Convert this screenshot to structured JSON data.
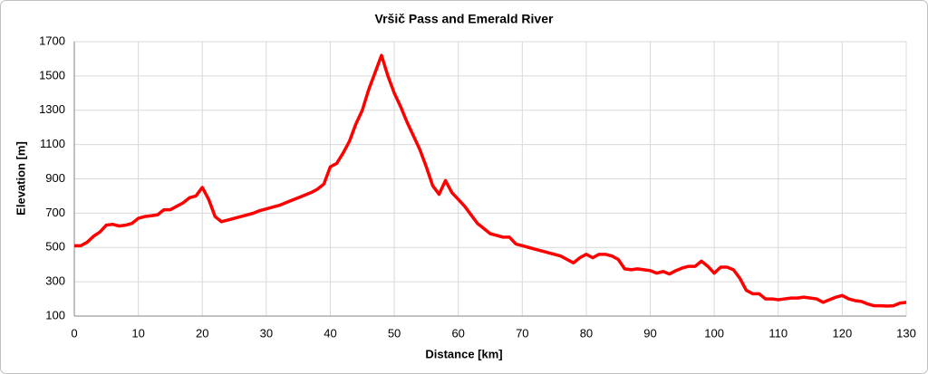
{
  "chart_data": {
    "type": "line",
    "title": "Vršič Pass and Emerald River",
    "x_label": "Distance [km]",
    "y_label": "Elevation [m]",
    "xlim": [
      0,
      130
    ],
    "xticks": [
      0,
      10,
      20,
      30,
      40,
      50,
      60,
      70,
      80,
      90,
      100,
      110,
      120,
      130
    ],
    "ylim": [
      100,
      1700
    ],
    "yticks": [
      100,
      300,
      500,
      700,
      900,
      1100,
      1300,
      1500,
      1700
    ],
    "grid": true,
    "x": [
      0,
      1,
      2,
      3,
      4,
      5,
      6,
      7,
      8,
      9,
      10,
      11,
      12,
      13,
      14,
      15,
      16,
      17,
      18,
      19,
      20,
      21,
      22,
      23,
      24,
      25,
      26,
      27,
      28,
      29,
      30,
      31,
      32,
      33,
      34,
      35,
      36,
      37,
      38,
      39,
      40,
      41,
      42,
      43,
      44,
      45,
      46,
      47,
      48,
      49,
      50,
      51,
      52,
      53,
      54,
      55,
      56,
      57,
      58,
      59,
      60,
      61,
      62,
      63,
      64,
      65,
      66,
      67,
      68,
      69,
      70,
      71,
      72,
      73,
      74,
      75,
      76,
      77,
      78,
      79,
      80,
      81,
      82,
      83,
      84,
      85,
      86,
      87,
      88,
      89,
      90,
      91,
      92,
      93,
      94,
      95,
      96,
      97,
      98,
      99,
      100,
      101,
      102,
      103,
      104,
      105,
      106,
      107,
      108,
      109,
      110,
      111,
      112,
      113,
      114,
      115,
      116,
      117,
      118,
      119,
      120,
      121,
      122,
      123,
      124,
      125,
      126,
      127,
      128,
      129,
      130
    ],
    "series": [
      {
        "name": "Elevation",
        "color": "#ff0000",
        "values": [
          510,
          510,
          530,
          565,
          590,
          630,
          635,
          625,
          630,
          640,
          670,
          680,
          685,
          690,
          720,
          720,
          740,
          760,
          790,
          800,
          850,
          780,
          680,
          650,
          660,
          670,
          680,
          690,
          700,
          715,
          725,
          735,
          745,
          760,
          775,
          790,
          805,
          820,
          840,
          870,
          970,
          990,
          1050,
          1120,
          1220,
          1300,
          1420,
          1520,
          1620,
          1500,
          1400,
          1320,
          1230,
          1150,
          1070,
          970,
          860,
          810,
          890,
          820,
          780,
          740,
          690,
          640,
          610,
          580,
          570,
          560,
          560,
          520,
          510,
          500,
          490,
          480,
          470,
          460,
          450,
          430,
          410,
          440,
          460,
          440,
          460,
          460,
          450,
          430,
          375,
          370,
          375,
          370,
          365,
          350,
          360,
          345,
          365,
          380,
          390,
          390,
          420,
          390,
          350,
          385,
          385,
          370,
          320,
          250,
          230,
          230,
          200,
          200,
          195,
          200,
          205,
          205,
          210,
          205,
          200,
          180,
          195,
          210,
          220,
          200,
          190,
          185,
          170,
          160,
          160,
          158,
          160,
          175,
          180
        ]
      }
    ]
  }
}
